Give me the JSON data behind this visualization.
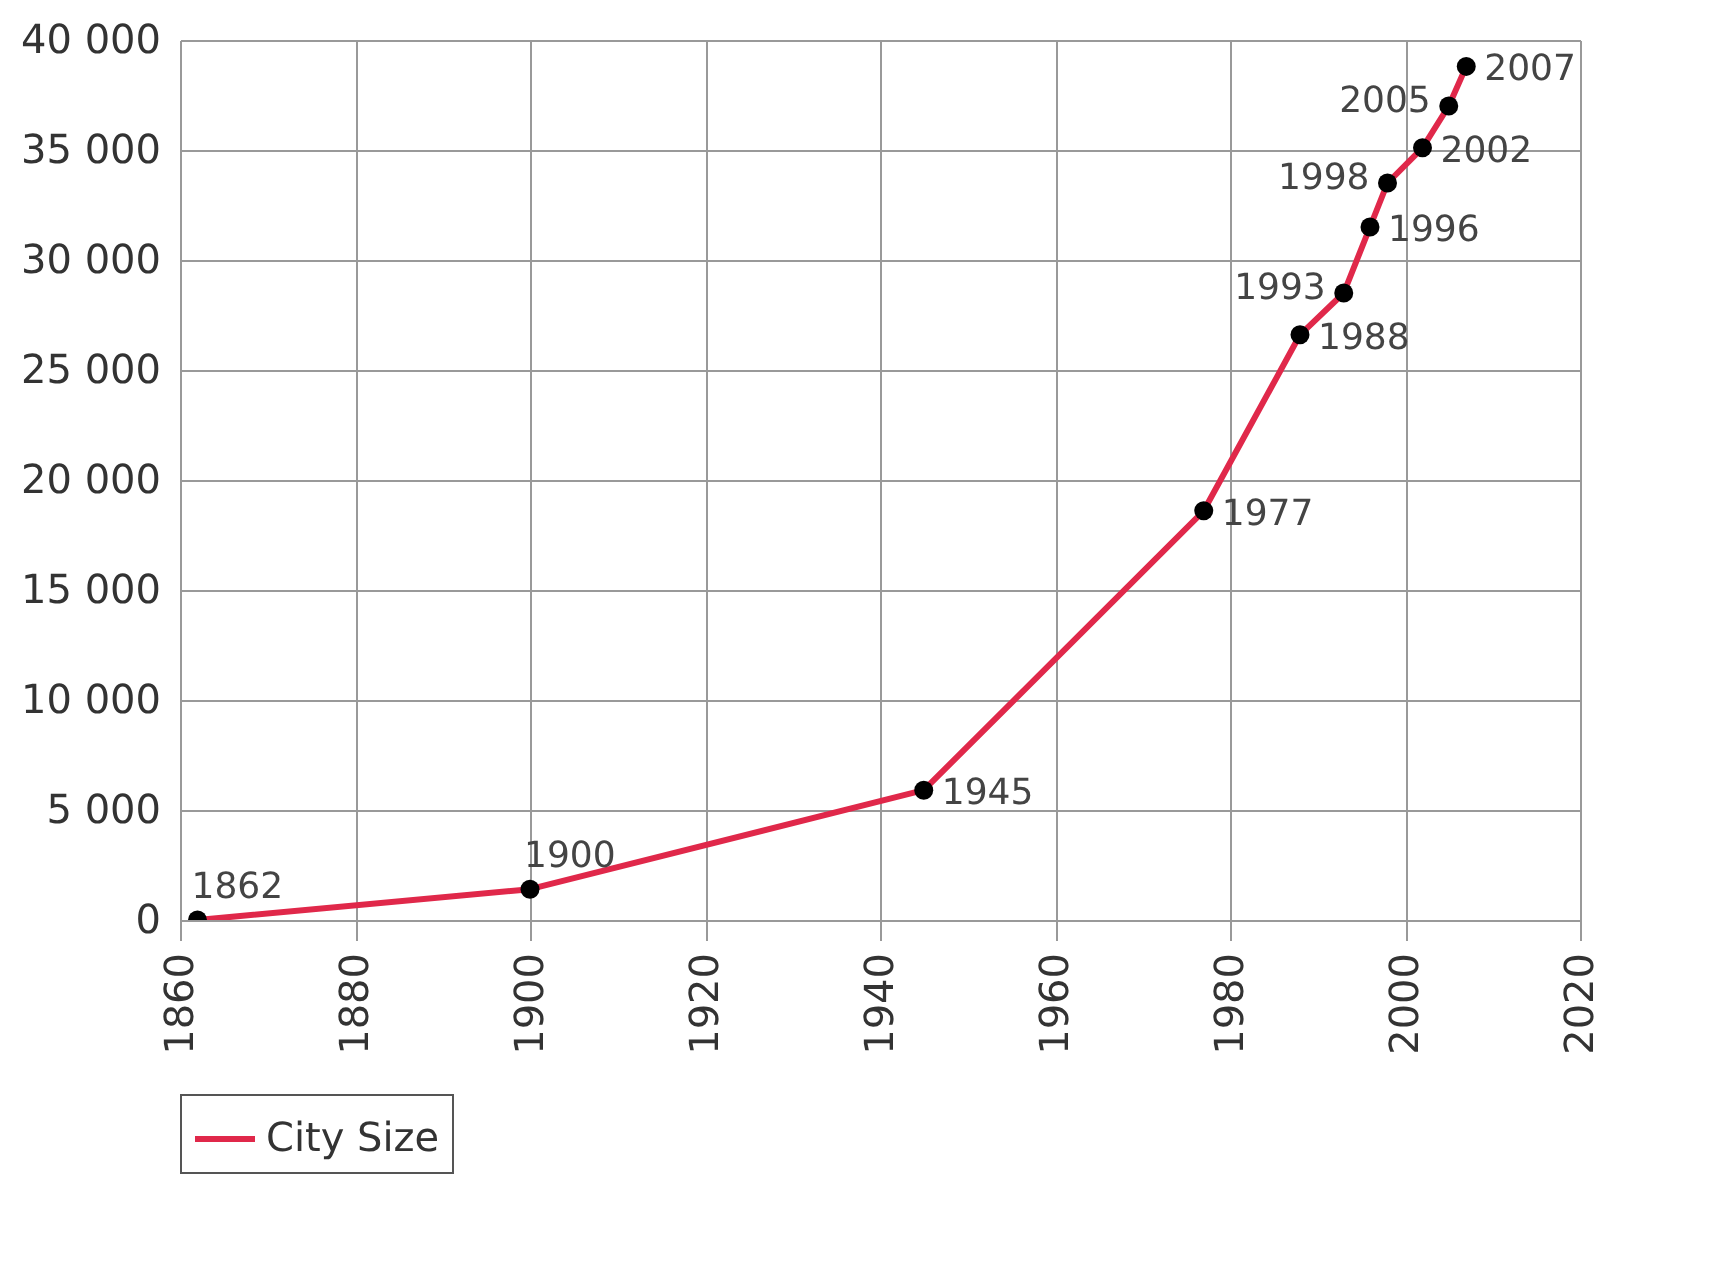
{
  "chart_data": {
    "type": "line",
    "x": [
      1862,
      1900,
      1945,
      1977,
      1988,
      1993,
      1996,
      1998,
      2002,
      2005,
      2007
    ],
    "series": [
      {
        "name": "City Size",
        "color": "#e0284a",
        "values": [
          0,
          1400,
          5900,
          18600,
          26600,
          28500,
          31500,
          33500,
          35100,
          37000,
          38800
        ]
      }
    ],
    "xlim": [
      1860,
      2020
    ],
    "xticks": [
      1860,
      1880,
      1900,
      1920,
      1940,
      1960,
      1980,
      2000,
      2020
    ],
    "ylim": [
      0,
      40000
    ],
    "yticks": [
      {
        "value": 0,
        "label": "0"
      },
      {
        "value": 5000,
        "label": "5 000"
      },
      {
        "value": 10000,
        "label": "10 000"
      },
      {
        "value": 15000,
        "label": "15 000"
      },
      {
        "value": 20000,
        "label": "20 000"
      },
      {
        "value": 25000,
        "label": "25 000"
      },
      {
        "value": 30000,
        "label": "30 000"
      },
      {
        "value": 35000,
        "label": "35 000"
      },
      {
        "value": 40000,
        "label": "40 000"
      }
    ],
    "annotations": [
      {
        "text": "1862",
        "x": 1862,
        "y": 0
      },
      {
        "text": "1900",
        "x": 1900,
        "y": 1400
      },
      {
        "text": "1945",
        "x": 1945,
        "y": 5900
      },
      {
        "text": "1977",
        "x": 1977,
        "y": 18600
      },
      {
        "text": "1988",
        "x": 1988,
        "y": 26600
      },
      {
        "text": "1993",
        "x": 1993,
        "y": 28500
      },
      {
        "text": "1996",
        "x": 1996,
        "y": 31500
      },
      {
        "text": "1998",
        "x": 1998,
        "y": 33500
      },
      {
        "text": "2002",
        "x": 2002,
        "y": 35100
      },
      {
        "text": "2005",
        "x": 2005,
        "y": 37000
      },
      {
        "text": "2007",
        "x": 2007,
        "y": 38800
      }
    ],
    "grid": true,
    "marker": "circle",
    "legend": "bottom"
  }
}
